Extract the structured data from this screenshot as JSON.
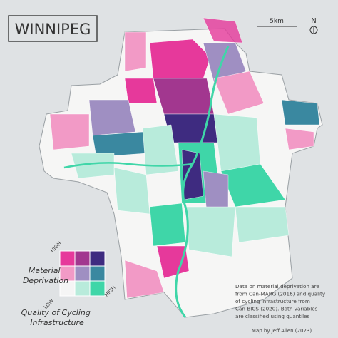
{
  "header": {
    "title": "WINNIPEG",
    "scale": "5km",
    "north": "N"
  },
  "legend": {
    "y_high": "HIGH",
    "x_low": "LOW",
    "x_high": "HIGH",
    "y_title": [
      "Material",
      "Deprivation"
    ],
    "x_title": [
      "Quality of Cycling",
      "Infrastructure"
    ]
  },
  "note": [
    "Data on material deprivation are",
    "from Can-MARG (2016) and quality",
    "of cycling infrastructure from",
    "Can-BICS (2020). Both variables",
    "are classified using quantiles"
  ],
  "credit": "Map by Jeff Allen (2023)"
}
